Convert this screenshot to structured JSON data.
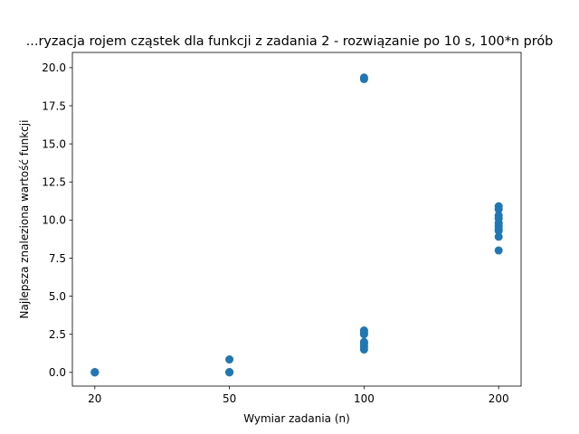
{
  "chart_data": {
    "type": "scatter",
    "title": "...ryzacja rojem cząstek dla funkcji z zadania 2 - rozwiązanie po 10 s, 100*n prób",
    "xlabel": "Wymiar zadania (n)",
    "ylabel": "Najlepsza znaleziona wartość funkcji",
    "x_axis_kind": "categorical",
    "categories": [
      "20",
      "50",
      "100",
      "200"
    ],
    "ylim": [
      -0.9,
      21.0
    ],
    "yticks": [
      0.0,
      2.5,
      5.0,
      7.5,
      10.0,
      12.5,
      15.0,
      17.5,
      20.0
    ],
    "ytick_labels": [
      "0.0",
      "2.5",
      "5.0",
      "7.5",
      "10.0",
      "12.5",
      "15.0",
      "17.5",
      "20.0"
    ],
    "grid": false,
    "marker_color": "#1f77b4",
    "series": [
      {
        "points": [
          {
            "x": "20",
            "y": 0.0
          },
          {
            "x": "20",
            "y": 0.01
          },
          {
            "x": "20",
            "y": 0.02
          },
          {
            "x": "20",
            "y": 0.0
          },
          {
            "x": "50",
            "y": 0.0
          },
          {
            "x": "50",
            "y": 0.02
          },
          {
            "x": "50",
            "y": 0.01
          },
          {
            "x": "50",
            "y": 0.85
          },
          {
            "x": "100",
            "y": 19.35
          },
          {
            "x": "100",
            "y": 19.25
          },
          {
            "x": "100",
            "y": 2.75
          },
          {
            "x": "100",
            "y": 2.6
          },
          {
            "x": "100",
            "y": 2.5
          },
          {
            "x": "100",
            "y": 2.0
          },
          {
            "x": "100",
            "y": 1.9
          },
          {
            "x": "100",
            "y": 1.7
          },
          {
            "x": "100",
            "y": 1.5
          },
          {
            "x": "200",
            "y": 10.9
          },
          {
            "x": "200",
            "y": 10.7
          },
          {
            "x": "200",
            "y": 10.3
          },
          {
            "x": "200",
            "y": 10.1
          },
          {
            "x": "200",
            "y": 9.8
          },
          {
            "x": "200",
            "y": 9.6
          },
          {
            "x": "200",
            "y": 9.4
          },
          {
            "x": "200",
            "y": 9.3
          },
          {
            "x": "200",
            "y": 8.9
          },
          {
            "x": "200",
            "y": 8.0
          }
        ]
      }
    ]
  }
}
